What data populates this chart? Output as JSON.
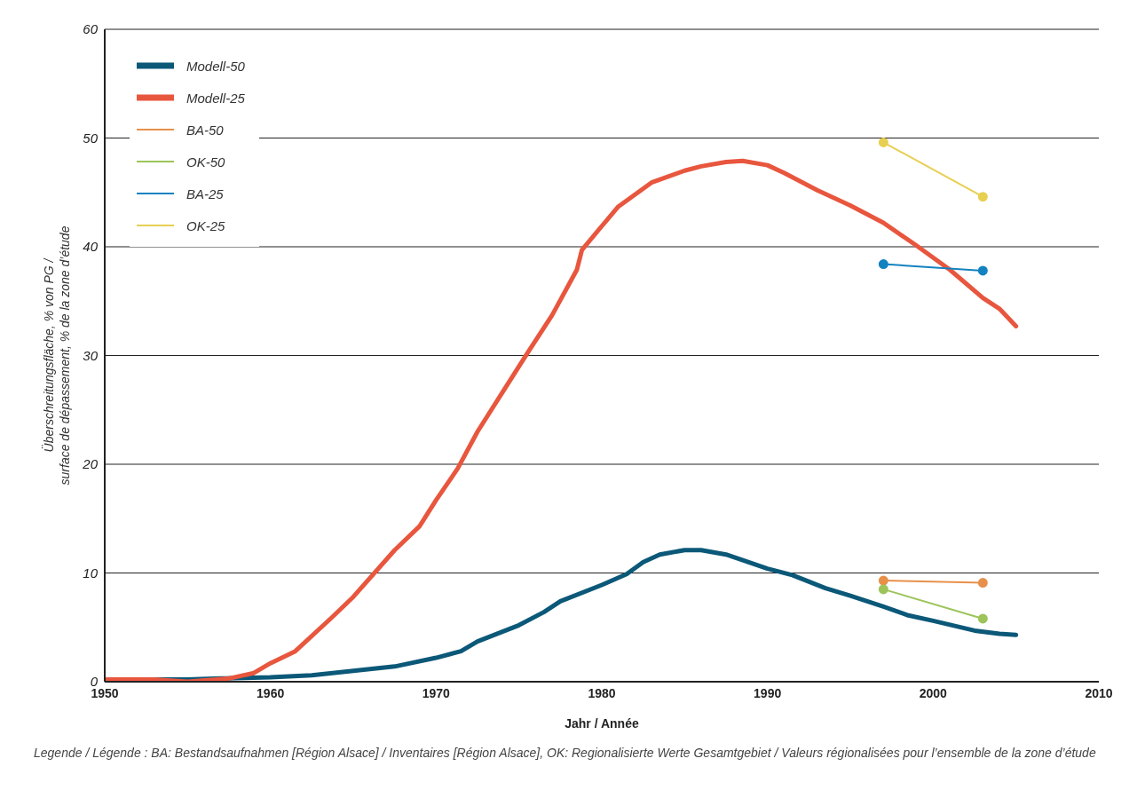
{
  "chart_data": {
    "type": "line",
    "xlabel": "Jahr / Année",
    "ylabel": "Überschreitungsfläche, % von PG /\nsurface de dépassement, % de la zone d’étude",
    "xlim": [
      1950,
      2010
    ],
    "xticks": [
      1950,
      1960,
      1970,
      1980,
      1990,
      2000,
      2010
    ],
    "ylim": [
      0,
      60
    ],
    "yticks": [
      0,
      10,
      20,
      30,
      40,
      50,
      60
    ],
    "grid": "y",
    "legend": "top left",
    "line_style": "solid",
    "series": [
      {
        "name": "Modell-50",
        "color": "#0b5878",
        "marker": "none",
        "x": [
          1950,
          1955,
          1957,
          1960,
          1962.5,
          1965,
          1967.5,
          1970,
          1971.5,
          1972.5,
          1975,
          1976.5,
          1977.5,
          1980,
          1981.5,
          1982.5,
          1983.5,
          1985,
          1986,
          1987.5,
          1990,
          1991.5,
          1993.5,
          1995,
          1997,
          1998.5,
          2000,
          2002.5,
          2004,
          2005
        ],
        "values": [
          0.2,
          0.2,
          0.3,
          0.4,
          0.6,
          1.0,
          1.4,
          2.2,
          2.8,
          3.7,
          5.2,
          6.4,
          7.4,
          8.9,
          9.9,
          11.0,
          11.7,
          12.1,
          12.1,
          11.7,
          10.4,
          9.8,
          8.6,
          7.9,
          6.9,
          6.1,
          5.6,
          4.7,
          4.4,
          4.3
        ]
      },
      {
        "name": "Modell-25",
        "color": "#e8563e",
        "marker": "none",
        "x": [
          1950,
          1953,
          1955,
          1957.5,
          1959,
          1960,
          1961.5,
          1963.7,
          1965,
          1967.5,
          1969,
          1970,
          1971.3,
          1972.5,
          1974,
          1975.5,
          1977,
          1978.5,
          1978.8,
          1980,
          1981,
          1982,
          1983,
          1985,
          1986,
          1987.5,
          1988.5,
          1990,
          1991,
          1993,
          1995,
          1997,
          1999,
          2001,
          2003,
          2004,
          2005
        ],
        "values": [
          0.2,
          0.2,
          0,
          0.3,
          0.8,
          1.7,
          2.8,
          5.9,
          7.8,
          12.1,
          14.3,
          16.7,
          19.6,
          23.0,
          26.6,
          30.2,
          33.7,
          37.9,
          39.7,
          41.9,
          43.7,
          44.8,
          45.9,
          47.0,
          47.4,
          47.8,
          47.9,
          47.5,
          46.8,
          45.2,
          43.8,
          42.2,
          40.1,
          37.9,
          35.3,
          34.3,
          32.7
        ]
      },
      {
        "name": "BA-50",
        "color": "#e8904a",
        "marker": "circle",
        "x": [
          1997,
          2003
        ],
        "values": [
          9.3,
          9.1
        ]
      },
      {
        "name": "OK-50",
        "color": "#9cc45a",
        "marker": "circle",
        "x": [
          1997,
          2003
        ],
        "values": [
          8.5,
          5.8
        ]
      },
      {
        "name": "BA-25",
        "color": "#1482c0",
        "marker": "circle",
        "x": [
          1997,
          2003
        ],
        "values": [
          38.4,
          37.8
        ]
      },
      {
        "name": "OK-25",
        "color": "#e8cf52",
        "marker": "circle",
        "x": [
          1997,
          2003
        ],
        "values": [
          49.6,
          44.6
        ]
      }
    ],
    "annotations": [
      "Legende / Légende : BA: Bestandsaufnahmen [Région Alsace] / Inventaires [Région Alsace], OK: Regionalisierte Werte Gesamtgebiet / Valeurs régionalisées pour l’ensemble de la zone d’étude"
    ]
  }
}
